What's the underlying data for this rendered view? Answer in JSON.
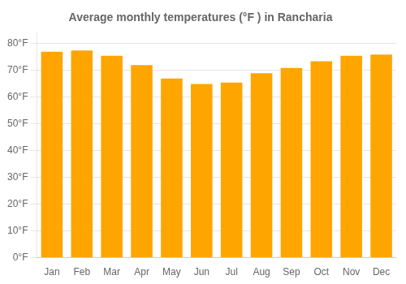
{
  "chart_data": {
    "type": "bar",
    "title": "Average monthly temperatures (°F ) in Rancharia",
    "categories": [
      "Jan",
      "Feb",
      "Mar",
      "Apr",
      "May",
      "Jun",
      "Jul",
      "Aug",
      "Sep",
      "Oct",
      "Nov",
      "Dec"
    ],
    "values": [
      77,
      77.5,
      75.5,
      72,
      67,
      65,
      65.5,
      69,
      71,
      73.5,
      75.5,
      76
    ],
    "color": "#FFA500",
    "ylim": [
      0,
      84
    ],
    "yticks": [
      {
        "value": 0,
        "label": "0°F"
      },
      {
        "value": 10,
        "label": "10°F"
      },
      {
        "value": 20,
        "label": "20°F"
      },
      {
        "value": 30,
        "label": "30°F"
      },
      {
        "value": 40,
        "label": "40°F"
      },
      {
        "value": 50,
        "label": "50°F"
      },
      {
        "value": 60,
        "label": "60°F"
      },
      {
        "value": 70,
        "label": "70°F"
      },
      {
        "value": 80,
        "label": "80°F"
      }
    ],
    "grid": true
  }
}
